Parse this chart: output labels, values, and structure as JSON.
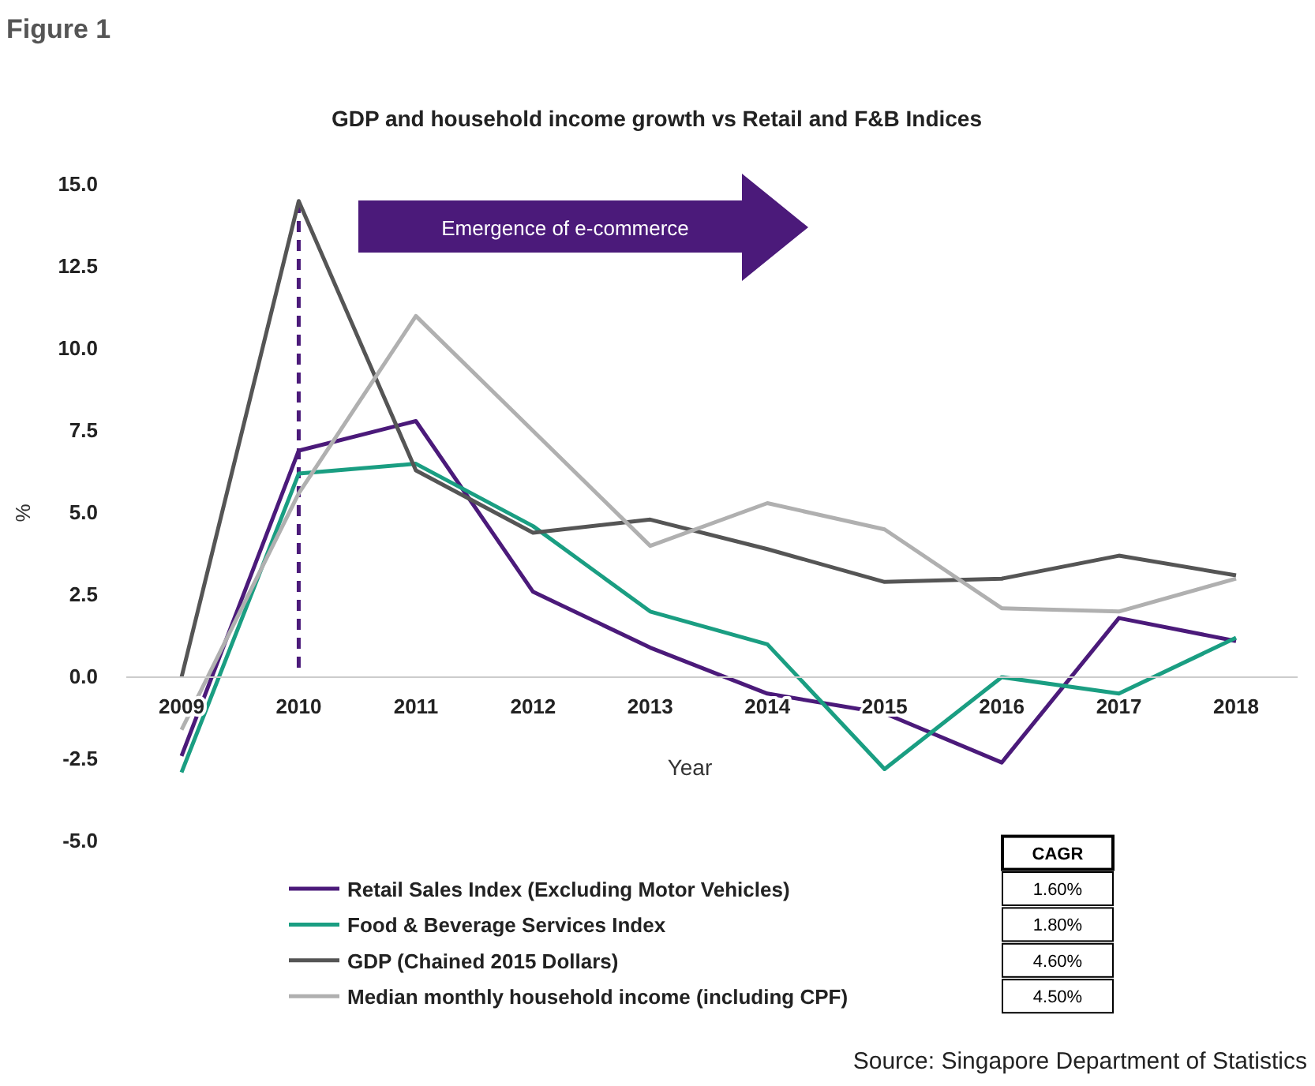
{
  "chart_data": {
    "type": "line",
    "title": "GDP and household income growth vs Retail and F&B Indices",
    "xlabel": "Year",
    "ylabel": "%",
    "categories": [
      "2009",
      "2010",
      "2011",
      "2012",
      "2013",
      "2014",
      "2015",
      "2016",
      "2017",
      "2018"
    ],
    "series": [
      {
        "name": "Retail Sales Index (Excluding Motor Vehicles)",
        "color": "#4b1a7a",
        "values": [
          -2.4,
          6.9,
          7.8,
          2.6,
          0.9,
          -0.5,
          -1.1,
          -2.6,
          1.8,
          1.1
        ]
      },
      {
        "name": "Food & Beverage Services Index",
        "color": "#1a9e82",
        "values": [
          -2.9,
          6.2,
          6.5,
          4.6,
          2.0,
          1.0,
          -2.8,
          0.0,
          -0.5,
          1.2
        ]
      },
      {
        "name": "GDP (Chained 2015 Dollars)",
        "color": "#555555",
        "values": [
          0.0,
          14.5,
          6.3,
          4.4,
          4.8,
          3.9,
          2.9,
          3.0,
          3.7,
          3.1
        ]
      },
      {
        "name": "Median monthly household income (including CPF)",
        "color": "#b0b0b0",
        "values": [
          -1.6,
          5.6,
          11.0,
          7.5,
          4.0,
          5.3,
          4.5,
          2.1,
          2.0,
          3.0
        ]
      }
    ],
    "ylim": [
      -5,
      15
    ],
    "yticks": [
      {
        "value": -5,
        "label": "-5.0"
      },
      {
        "value": -2.5,
        "label": "-2.5"
      },
      {
        "value": 0,
        "label": "0.0"
      },
      {
        "value": 2.5,
        "label": "2.5"
      },
      {
        "value": 5,
        "label": "5.0"
      },
      {
        "value": 7.5,
        "label": "7.5"
      },
      {
        "value": 10,
        "label": "10.0"
      },
      {
        "value": 12.5,
        "label": "12.5"
      },
      {
        "value": 15,
        "label": "15.0"
      }
    ],
    "ref_lines": [
      {
        "axis": "x",
        "value": "2010",
        "color": "#4b1a7a",
        "line_style": "dashed"
      }
    ],
    "legend": "bottom",
    "line_style": "solid",
    "annotations": [
      "Figure 1",
      "Emergence of e-commerce",
      "CAGR",
      "1.60%",
      "1.80%",
      "4.60%",
      "4.50%",
      "Source: Singapore Department of Statistics"
    ]
  }
}
